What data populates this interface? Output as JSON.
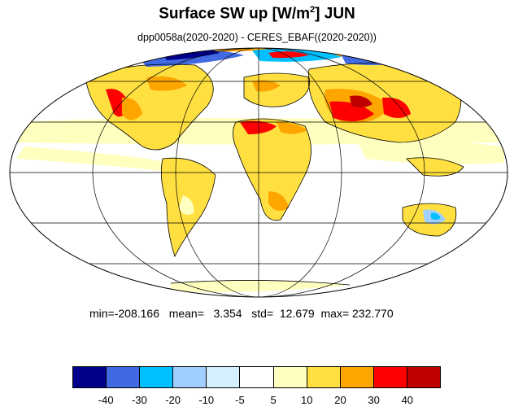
{
  "title_main": "Surface SW up [W/m",
  "title_sup": "2",
  "title_tail": "]  JUN",
  "subtitle": "dpp0058a(2020-2020) - CERES_EBAF((2020-2020))",
  "stats": {
    "min": "min=-208.166",
    "mean": "mean=   3.354",
    "std": "std=  12.679",
    "max": "max= 232.770"
  },
  "colorbar": {
    "colors": [
      "#00008b",
      "#4169e1",
      "#00bfff",
      "#a0cfff",
      "#d4f0ff",
      "#ffffff",
      "#ffffc0",
      "#ffe040",
      "#ffa500",
      "#ff0000",
      "#c00000"
    ],
    "labels": [
      "-40",
      "-30",
      "-20",
      "-10",
      "-5",
      "5",
      "10",
      "20",
      "30",
      "40"
    ]
  }
}
